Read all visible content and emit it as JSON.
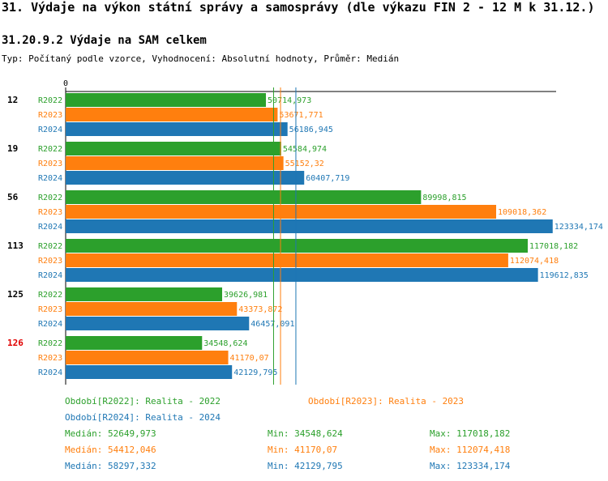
{
  "header": {
    "title": "31. Výdaje na výkon státní správy a samosprávy (dle výkazu FIN 2 - 12 M k 31.12.)",
    "subtitle": "31.20.9.2 Výdaje na SAM celkem",
    "type_line": "Typ: Počítaný podle vzorce, Vyhodnocení: Absolutní hodnoty, Průměr: Medián"
  },
  "colors": {
    "R2022": "#2ca02c",
    "R2023": "#ff7f0e",
    "R2024": "#1f77b4",
    "highlight": "#e00000"
  },
  "chart_data": {
    "type": "bar",
    "orientation": "horizontal",
    "axis_zero_label": "0",
    "xlim": [
      0,
      125000
    ],
    "categories": [
      "12",
      "19",
      "56",
      "113",
      "125",
      "126"
    ],
    "highlighted_category": "126",
    "series": [
      {
        "name": "R2022",
        "values": [
          50714.973,
          54584.974,
          89998.815,
          117018.182,
          39626.981,
          34548.624
        ],
        "labels": [
          "50714,973",
          "54584,974",
          "89998,815",
          "117018,182",
          "39626,981",
          "34548,624"
        ]
      },
      {
        "name": "R2023",
        "values": [
          53671.771,
          55152.32,
          109018.362,
          112074.418,
          43373.872,
          41170.07
        ],
        "labels": [
          "53671,771",
          "55152,32",
          "109018,362",
          "112074,418",
          "43373,872",
          "41170,07"
        ]
      },
      {
        "name": "R2024",
        "values": [
          56186.945,
          60407.719,
          123334.174,
          119612.835,
          46457.091,
          42129.795
        ],
        "labels": [
          "56186,945",
          "60407,719",
          "123334,174",
          "119612,835",
          "46457,091",
          "42129,795"
        ]
      }
    ],
    "medians": [
      52649.973,
      54412.046,
      58297.332
    ]
  },
  "legend": {
    "period_2022": "Období[R2022]: Realita - 2022",
    "period_2023": "Období[R2023]: Realita - 2023",
    "period_2024": "Období[R2024]: Realita - 2024",
    "stats": [
      {
        "median": "Medián: 52649,973",
        "min": "Min: 34548,624",
        "max": "Max: 117018,182"
      },
      {
        "median": "Medián: 54412,046",
        "min": "Min: 41170,07",
        "max": "Max: 112074,418"
      },
      {
        "median": "Medián: 58297,332",
        "min": "Min: 42129,795",
        "max": "Max: 123334,174"
      }
    ]
  }
}
